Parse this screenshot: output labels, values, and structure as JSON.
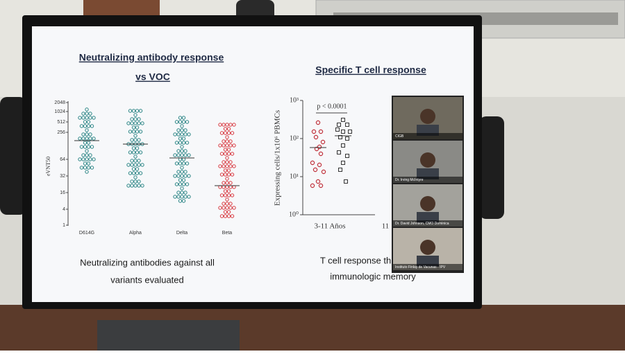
{
  "slide": {
    "left_title": [
      "Neutralizing antibody response",
      "vs VOC"
    ],
    "left_chart": {
      "y_axis_label": "eVNT50",
      "yticks": [
        "2048",
        "1024",
        "512",
        "256",
        "64",
        "32",
        "16",
        "4",
        "1"
      ],
      "categories": [
        "D614G",
        "Alpha",
        "Delta",
        "Beta"
      ]
    },
    "left_caption": [
      "Neutralizing antibodies against all",
      "variants evaluated"
    ],
    "right_title": "Specific T cell response",
    "right_chart": {
      "y_axis_label": "Expressing cells/1x10⁶ PBMCs",
      "yticks": [
        "10³",
        "10²",
        "10¹",
        "10⁰"
      ],
      "p_value": "p < 0.0001",
      "categories": [
        "3-11 Años",
        "11"
      ]
    },
    "right_caption": [
      "T cell response th",
      "immunologic memory"
    ]
  },
  "video_call": {
    "participants": [
      "CIGB",
      "Dr. Irving McIntyre",
      "Dr. David Johnson, CMO Dominica",
      "Instituto Finlay de Vacunas - IPV"
    ]
  }
}
